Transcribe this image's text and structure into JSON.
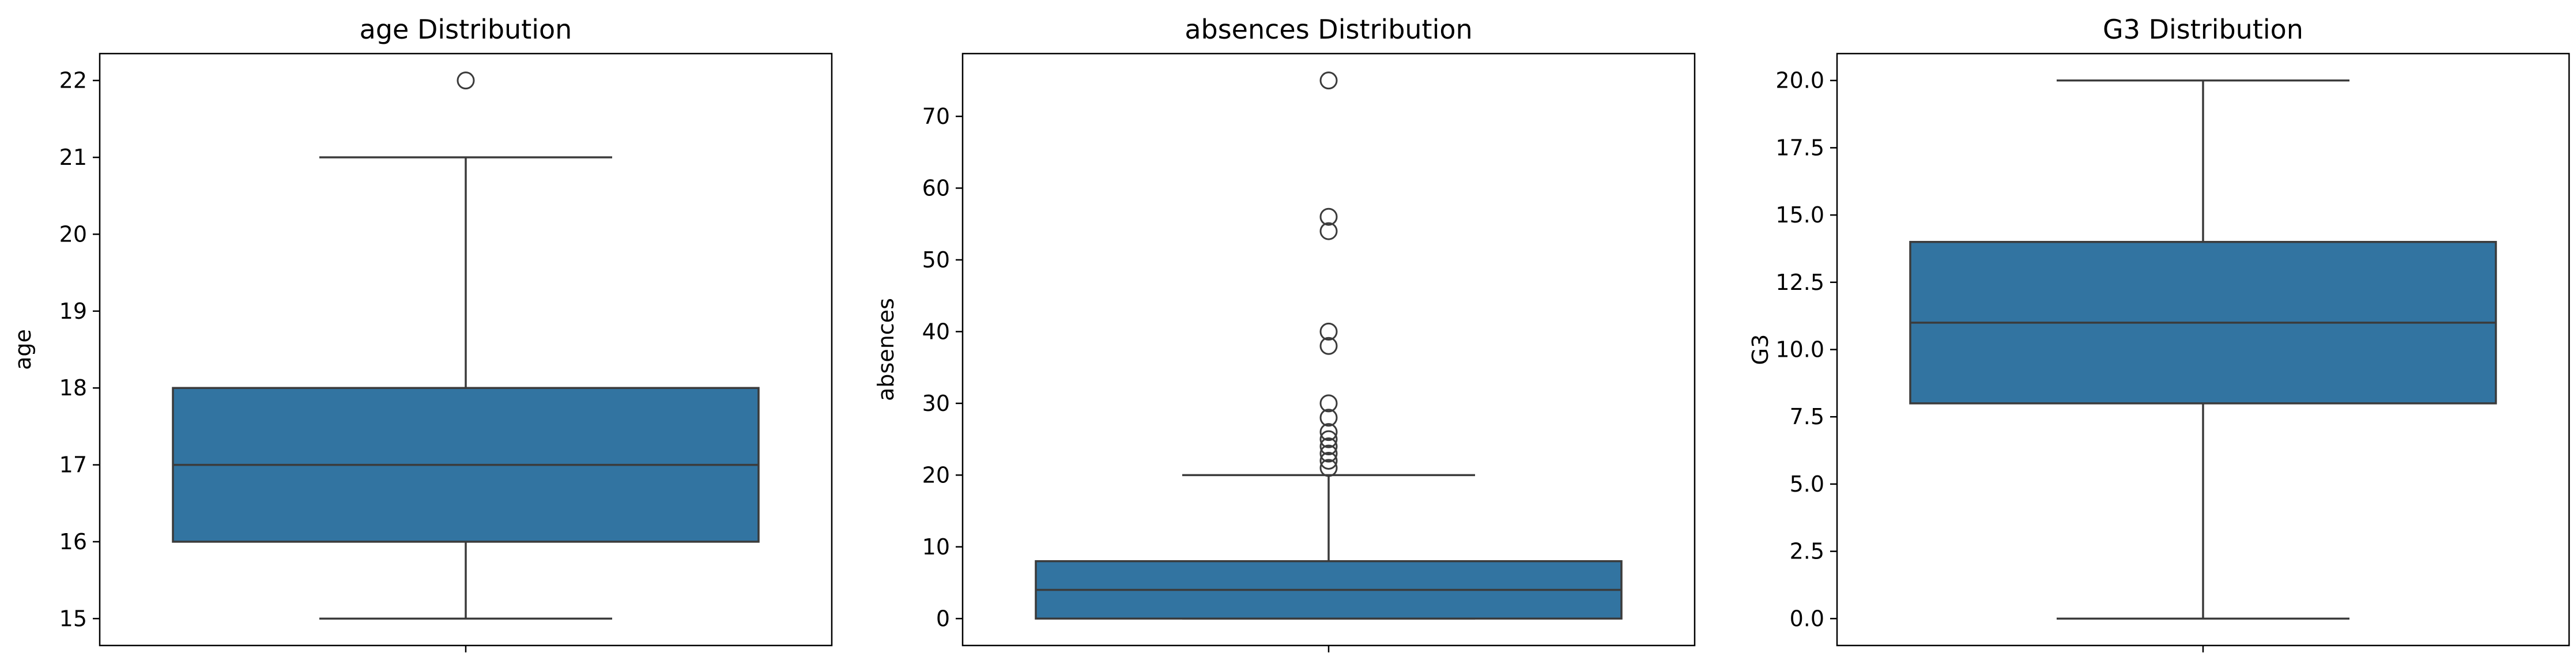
{
  "colors": {
    "box_fill": "#3274a1",
    "line": "#3b3b3b",
    "frame": "#000000",
    "background": "#ffffff"
  },
  "chart_data": [
    {
      "type": "box",
      "title": "age Distribution",
      "xlabel": "",
      "ylabel": "age",
      "ylim": [
        14.65,
        22.35
      ],
      "yticks": [
        15,
        16,
        17,
        18,
        19,
        20,
        21,
        22
      ],
      "ytick_labels": [
        "15",
        "16",
        "17",
        "18",
        "19",
        "20",
        "21",
        "22"
      ],
      "box": {
        "whisker_low": 15,
        "q1": 16,
        "median": 17,
        "q3": 18,
        "whisker_high": 21
      },
      "outliers": [
        22
      ],
      "grid": false,
      "legend": "none"
    },
    {
      "type": "box",
      "title": "absences Distribution",
      "xlabel": "",
      "ylabel": "absences",
      "ylim": [
        -3.75,
        78.75
      ],
      "yticks": [
        0,
        10,
        20,
        30,
        40,
        50,
        60,
        70
      ],
      "ytick_labels": [
        "0",
        "10",
        "20",
        "30",
        "40",
        "50",
        "60",
        "70"
      ],
      "box": {
        "whisker_low": 0,
        "q1": 0,
        "median": 4,
        "q3": 8,
        "whisker_high": 20
      },
      "outliers": [
        21,
        22,
        23,
        24,
        25,
        26,
        28,
        30,
        38,
        40,
        54,
        56,
        75
      ],
      "grid": false,
      "legend": "none"
    },
    {
      "type": "box",
      "title": "G3 Distribution",
      "xlabel": "",
      "ylabel": "G3",
      "ylim": [
        -1.0,
        21.0
      ],
      "yticks": [
        0,
        2.5,
        5,
        7.5,
        10,
        12.5,
        15,
        17.5,
        20
      ],
      "ytick_labels": [
        "0.0",
        "2.5",
        "5.0",
        "7.5",
        "10.0",
        "12.5",
        "15.0",
        "17.5",
        "20.0"
      ],
      "box": {
        "whisker_low": 0,
        "q1": 8,
        "median": 11,
        "q3": 14,
        "whisker_high": 20
      },
      "outliers": [],
      "grid": false,
      "legend": "none"
    }
  ]
}
